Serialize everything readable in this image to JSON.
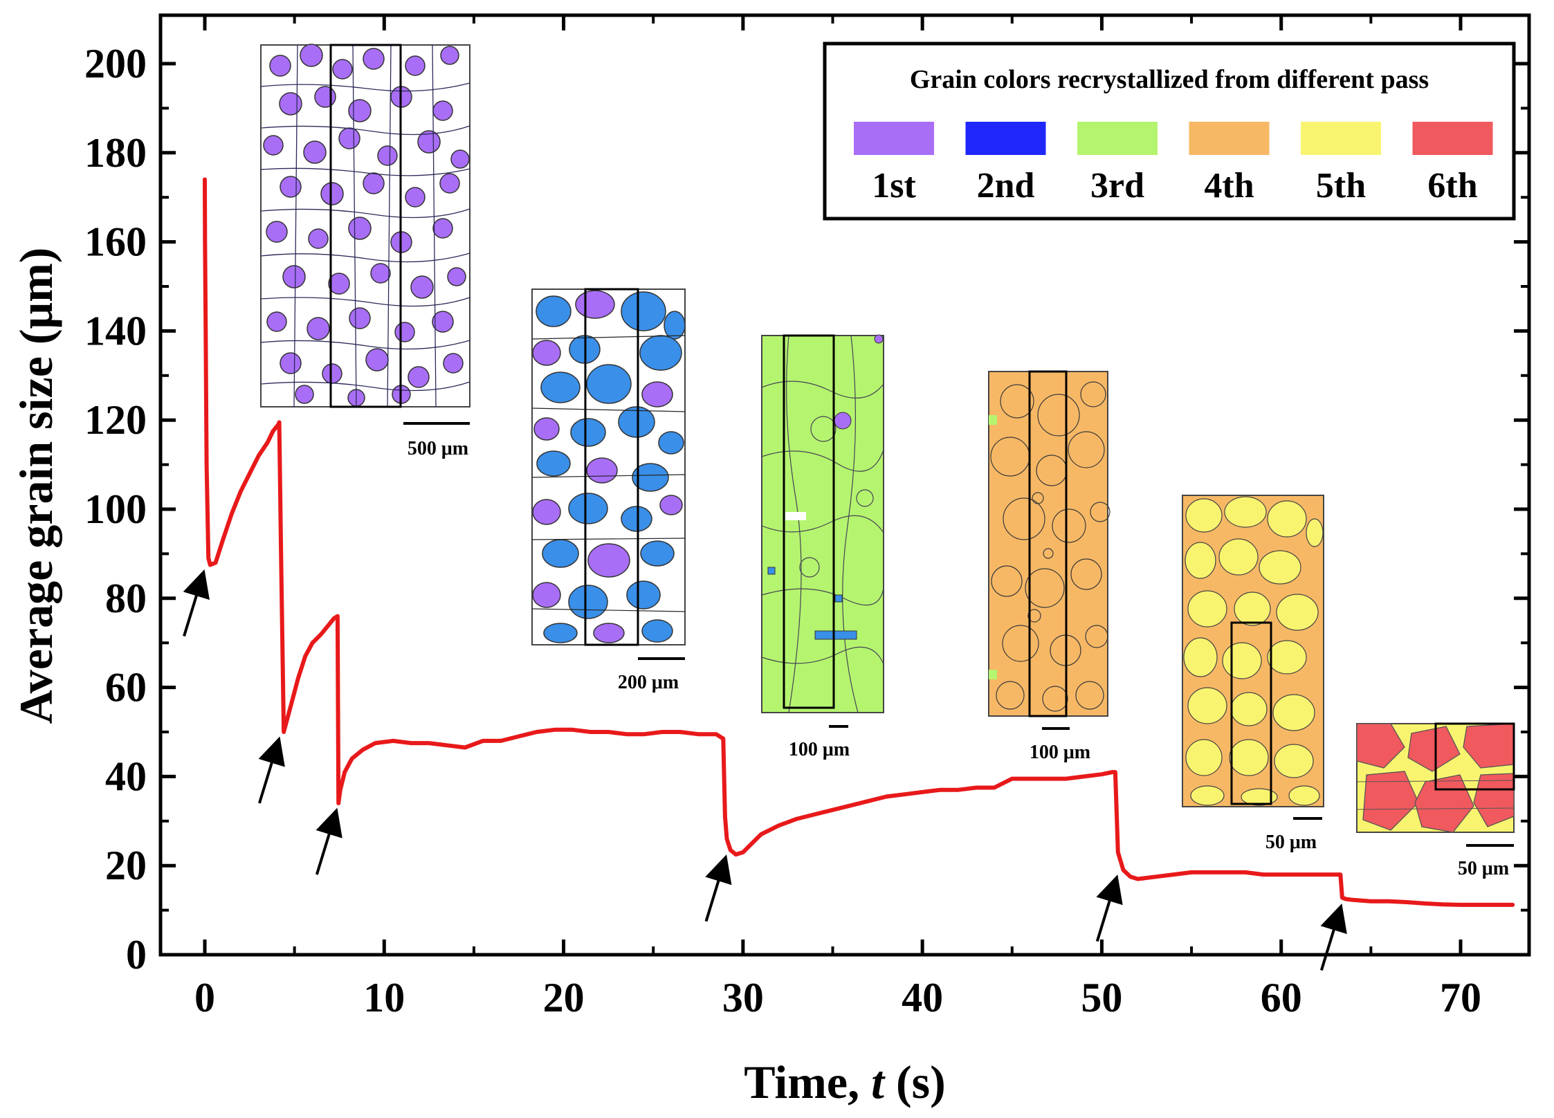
{
  "chart_data": {
    "type": "line",
    "xlabel": "Time, t (s)",
    "ylabel": "Average grain size (μm)",
    "xlim": [
      -3,
      74
    ],
    "ylim": [
      0,
      210
    ],
    "xticks": [
      0,
      10,
      20,
      30,
      40,
      50,
      60,
      70
    ],
    "yticks": [
      0,
      20,
      40,
      60,
      80,
      100,
      120,
      140,
      160,
      180,
      200
    ],
    "series": [
      {
        "name": "Average grain size",
        "color": "#e8191a",
        "x": [
          0,
          0.01,
          0.05,
          0.1,
          0.2,
          0.3,
          0.6,
          1.0,
          1.5,
          2.0,
          2.5,
          3.0,
          3.5,
          3.8,
          4.1,
          4.15,
          4.25,
          4.4,
          4.8,
          5.2,
          5.6,
          6.0,
          6.5,
          7.0,
          7.2,
          7.4,
          7.45,
          7.55,
          7.8,
          8.2,
          8.8,
          9.5,
          10.5,
          11.5,
          12.5,
          13.5,
          14.5,
          15.5,
          16.5,
          17.5,
          18.5,
          19.5,
          20.5,
          21.5,
          22.5,
          23.5,
          24.5,
          25.5,
          26.5,
          27.5,
          28.5,
          28.9,
          29.0,
          29.1,
          29.3,
          29.6,
          30.0,
          30.5,
          31.0,
          32.0,
          33.0,
          34.0,
          35.0,
          36.0,
          37.0,
          38.0,
          39.0,
          40.0,
          41.0,
          42.0,
          43.0,
          44.0,
          45.0,
          46.0,
          47.0,
          48.0,
          49.0,
          50.0,
          50.6,
          50.75,
          50.9,
          51.2,
          51.6,
          52.0,
          53.0,
          54.0,
          55.0,
          56.0,
          57.0,
          58.0,
          59.0,
          60.0,
          61.0,
          62.0,
          63.0,
          63.3,
          63.4,
          63.6,
          64.0,
          65.0,
          66.0,
          67.0,
          68.0,
          69.0,
          70.0,
          71.0,
          72.0,
          72.9
        ],
        "values": [
          174,
          160,
          140,
          110,
          89,
          87.5,
          88,
          93,
          99,
          104,
          108,
          112,
          115,
          117.5,
          119,
          119.5,
          90,
          50,
          56,
          62,
          67,
          70,
          72,
          74.5,
          75.5,
          76,
          34,
          37,
          41,
          44,
          46,
          47.5,
          48,
          47.5,
          47.5,
          47,
          46.5,
          48,
          48,
          49,
          50,
          50.5,
          50.5,
          50,
          50,
          49.5,
          49.5,
          50,
          50,
          49.5,
          49.5,
          48.5,
          31,
          26,
          23.5,
          22.5,
          23,
          25,
          27,
          29,
          30.5,
          31.5,
          32.5,
          33.5,
          34.5,
          35.5,
          36,
          36.5,
          37,
          37,
          37.5,
          37.5,
          39.5,
          39.5,
          39.5,
          39.5,
          40,
          40.5,
          41,
          41,
          23,
          19,
          17.5,
          17,
          17.5,
          18,
          18.5,
          18.5,
          18.5,
          18.5,
          18,
          18,
          18,
          18,
          18,
          18,
          12.8,
          12.5,
          12.3,
          12,
          12,
          11.8,
          11.5,
          11.3,
          11.2,
          11.2,
          11.2,
          11.2
        ]
      }
    ],
    "arrow_times": [
      0,
      4.2,
      7.4,
      29.1,
      50.9,
      63.4
    ],
    "legend": {
      "title": "Grain colors recrystallized from different pass",
      "position": "top-right",
      "entries": [
        {
          "label": "1st",
          "color": "#a96ef6"
        },
        {
          "label": "2nd",
          "color": "#1f27fb"
        },
        {
          "label": "3rd",
          "color": "#b5f46f"
        },
        {
          "label": "4th",
          "color": "#f7b865"
        },
        {
          "label": "5th",
          "color": "#f9f46f"
        },
        {
          "label": "6th",
          "color": "#f0595e"
        }
      ]
    },
    "insets": [
      {
        "name": "1st-pass",
        "scale_label": "500 μm"
      },
      {
        "name": "2nd-pass",
        "scale_label": "200 μm"
      },
      {
        "name": "3rd-pass",
        "scale_label": "100 μm"
      },
      {
        "name": "4th-pass",
        "scale_label": "100 μm"
      },
      {
        "name": "5th-pass",
        "scale_label": "50 μm"
      },
      {
        "name": "6th-pass",
        "scale_label": "50 μm"
      }
    ]
  }
}
